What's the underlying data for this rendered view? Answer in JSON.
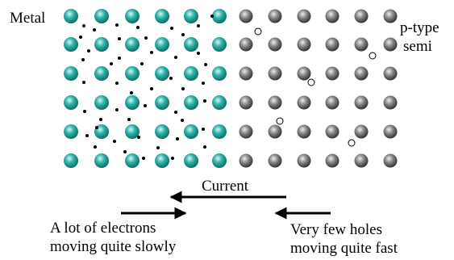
{
  "labels": {
    "metal": "Metal",
    "semi": [
      "p-type",
      "semi"
    ],
    "current": "Current",
    "electrons": [
      "A lot of electrons",
      "moving quite slowly"
    ],
    "holes": [
      "Very few holes",
      "moving quite fast"
    ]
  }
}
